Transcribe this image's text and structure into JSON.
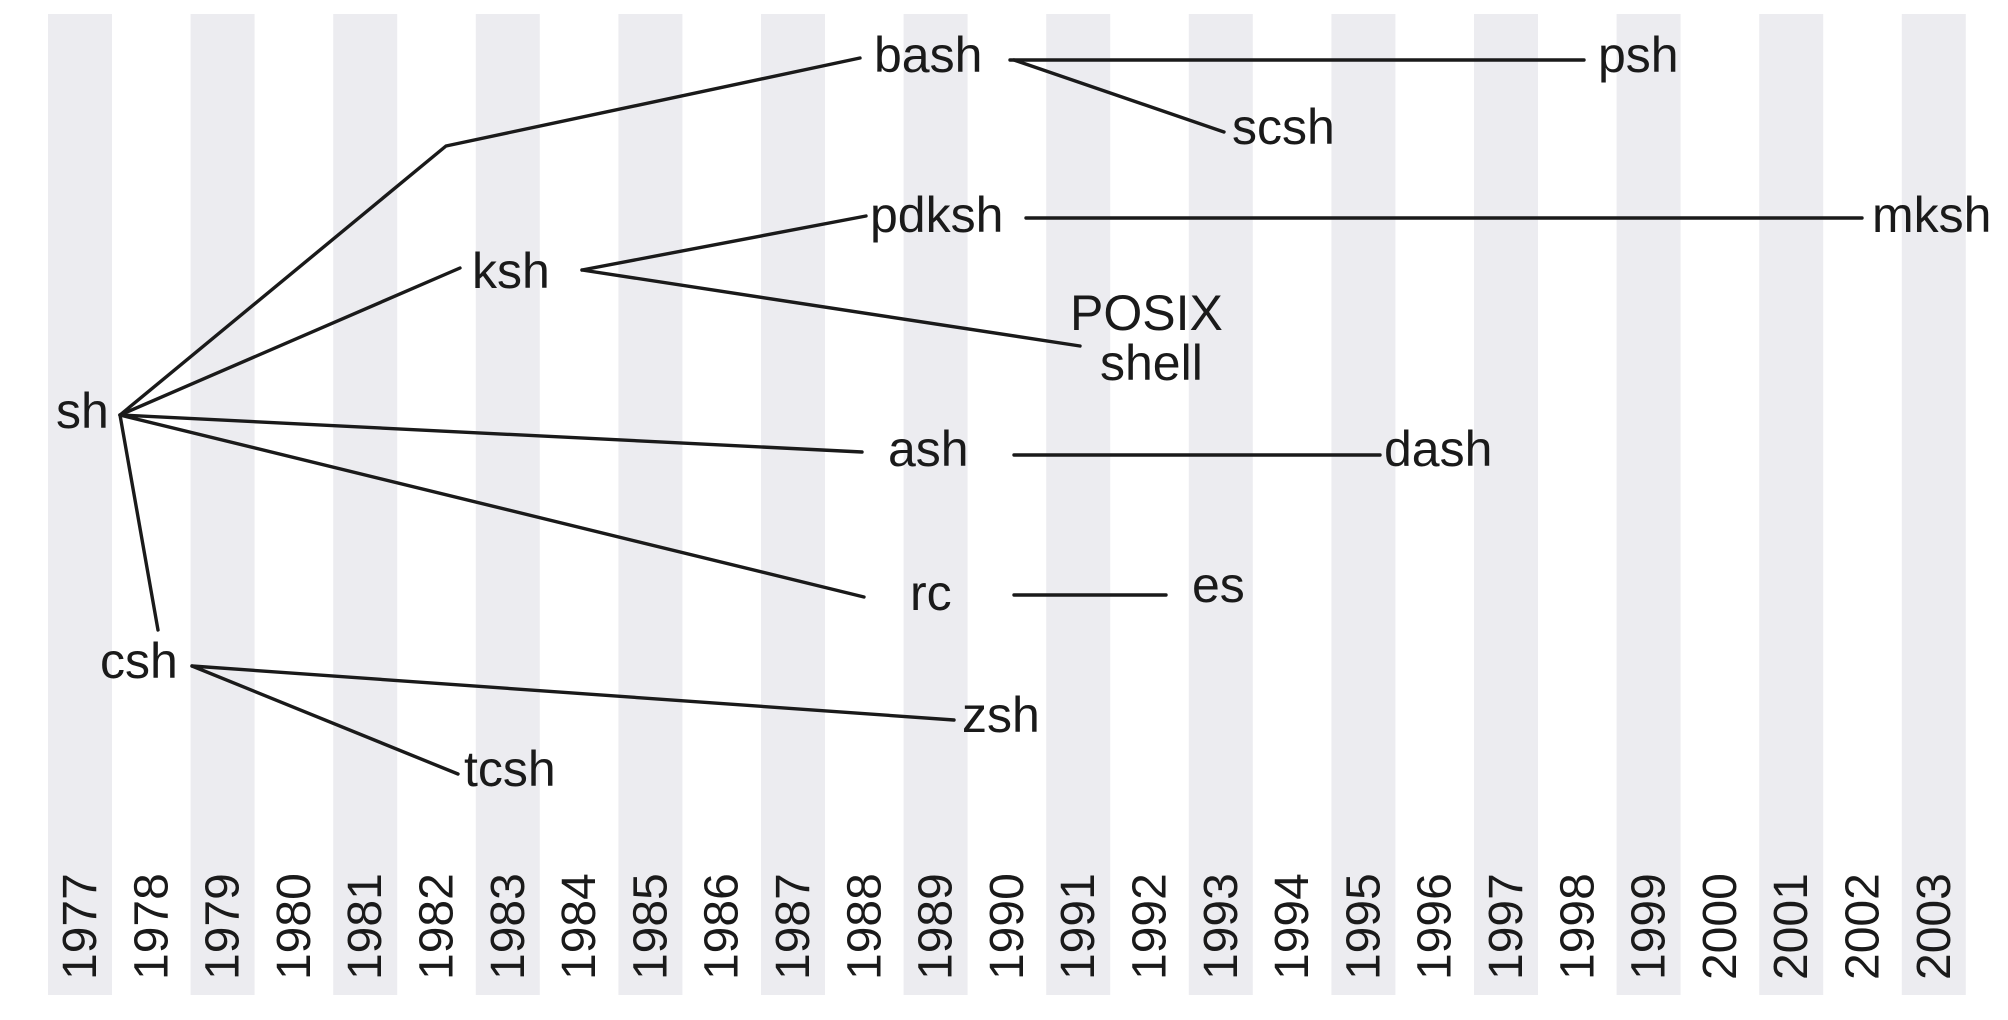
{
  "years": [
    "1977",
    "1978",
    "1979",
    "1980",
    "1981",
    "1982",
    "1983",
    "1984",
    "1985",
    "1986",
    "1987",
    "1988",
    "1989",
    "1990",
    "1991",
    "1992",
    "1993",
    "1994",
    "1995",
    "1996",
    "1997",
    "1998",
    "1999",
    "2000",
    "2001",
    "2002",
    "2003"
  ],
  "shells": {
    "sh": "sh",
    "bash": "bash",
    "psh": "psh",
    "scsh": "scsh",
    "ksh": "ksh",
    "pdksh": "pdksh",
    "mksh": "mksh",
    "posix_line1": "POSIX",
    "posix_line2": "shell",
    "ash": "ash",
    "dash": "dash",
    "rc": "rc",
    "es": "es",
    "csh": "csh",
    "zsh": "zsh",
    "tcsh": "tcsh"
  }
}
